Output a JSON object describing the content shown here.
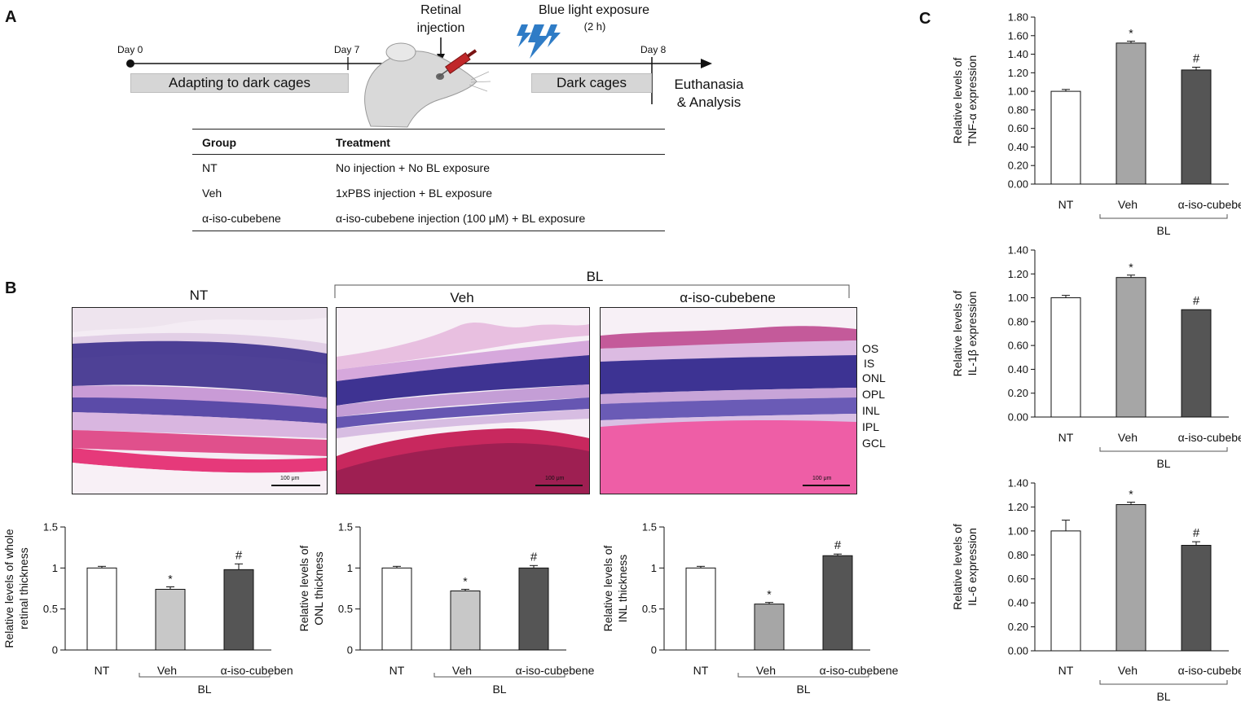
{
  "panel_labels": {
    "a": "A",
    "b": "B",
    "c": "C"
  },
  "timeline": {
    "day0": "Day 0",
    "day7": "Day 7",
    "day8": "Day 8",
    "retinal_injection": [
      "Retinal",
      "injection"
    ],
    "blue_light_title": "Blue light exposure",
    "blue_light_duration": "(2 h)",
    "box_adapting": "Adapting to dark cages",
    "box_dark": "Dark cages",
    "euthanasia": [
      "Euthanasia",
      "& Analysis"
    ]
  },
  "table": {
    "headers": [
      "Group",
      "Treatment"
    ],
    "rows": [
      [
        "NT",
        "No injection + No BL exposure"
      ],
      [
        "Veh",
        "1xPBS injection + BL exposure"
      ],
      [
        "α-iso-cubebene",
        "α-iso-cubebene injection (100 μM) + BL exposure"
      ]
    ]
  },
  "histology": {
    "group_bl": "BL",
    "titles": [
      "NT",
      "Veh",
      "α-iso-cubebene"
    ],
    "scale_bar": "100 μm",
    "layers": [
      "OS",
      "IS",
      "ONL",
      "OPL",
      "INL",
      "IPL",
      "GCL"
    ]
  },
  "colors": {
    "nt": "#ffffff",
    "veh_b": "#c8c8c8",
    "veh_c": "#a6a6a6",
    "aic": "#555555"
  },
  "chart_data": [
    {
      "id": "b1",
      "type": "bar",
      "categories": [
        "NT",
        "Veh",
        "α-iso-cubebene"
      ],
      "values": [
        1.0,
        0.74,
        0.98
      ],
      "errors": [
        0.02,
        0.03,
        0.07
      ],
      "sig": [
        "",
        "*",
        "#"
      ],
      "ylabel": [
        "Relative levels of whole",
        "retinal thickness"
      ],
      "ylim": [
        0,
        1.5
      ],
      "yticks": [
        "0",
        "0.5",
        "1",
        "1.5"
      ],
      "group_label": "BL"
    },
    {
      "id": "b2",
      "type": "bar",
      "categories": [
        "NT",
        "Veh",
        "α-iso-cubebene"
      ],
      "values": [
        1.0,
        0.72,
        1.0
      ],
      "errors": [
        0.02,
        0.02,
        0.03
      ],
      "sig": [
        "",
        "*",
        "#"
      ],
      "ylabel": [
        "Relative levels of",
        "ONL thickness"
      ],
      "ylim": [
        0,
        1.5
      ],
      "yticks": [
        "0",
        "0.5",
        "1",
        "1.5"
      ],
      "group_label": "BL"
    },
    {
      "id": "b3",
      "type": "bar",
      "categories": [
        "NT",
        "Veh",
        "α-iso-cubebene"
      ],
      "values": [
        1.0,
        0.56,
        1.15
      ],
      "errors": [
        0.02,
        0.02,
        0.02
      ],
      "sig": [
        "",
        "*",
        "#"
      ],
      "ylabel": [
        "Relative levels of",
        "INL thickness"
      ],
      "ylim": [
        0,
        1.5
      ],
      "yticks": [
        "0",
        "0.5",
        "1",
        "1.5"
      ],
      "group_label": "BL"
    },
    {
      "id": "c1",
      "type": "bar",
      "categories": [
        "NT",
        "Veh",
        "α-iso-cubebene"
      ],
      "values": [
        1.0,
        1.52,
        1.23
      ],
      "errors": [
        0.02,
        0.02,
        0.03
      ],
      "sig": [
        "",
        "*",
        "#"
      ],
      "ylabel": [
        "Relative levels of",
        "TNF-α expression"
      ],
      "ylim": [
        0,
        1.8
      ],
      "yticks": [
        "0.00",
        "0.20",
        "0.40",
        "0.60",
        "0.80",
        "1.00",
        "1.20",
        "1.40",
        "1.60",
        "1.80"
      ],
      "group_label": "BL"
    },
    {
      "id": "c2",
      "type": "bar",
      "categories": [
        "NT",
        "Veh",
        "α-iso-cubebene"
      ],
      "values": [
        1.0,
        1.17,
        0.9
      ],
      "errors": [
        0.02,
        0.02,
        0.0
      ],
      "sig": [
        "",
        "*",
        "#"
      ],
      "ylabel": [
        "Relative levels of",
        "IL-1β expression"
      ],
      "ylim": [
        0,
        1.4
      ],
      "yticks": [
        "0.00",
        "0.20",
        "0.40",
        "0.60",
        "0.80",
        "1.00",
        "1.20",
        "1.40"
      ],
      "group_label": "BL"
    },
    {
      "id": "c3",
      "type": "bar",
      "categories": [
        "NT",
        "Veh",
        "α-iso-cubebene"
      ],
      "values": [
        1.0,
        1.22,
        0.88
      ],
      "errors": [
        0.09,
        0.02,
        0.03
      ],
      "sig": [
        "",
        "*",
        "#"
      ],
      "ylabel": [
        "Relative levels of",
        "IL-6 expression"
      ],
      "ylim": [
        0,
        1.4
      ],
      "yticks": [
        "0.00",
        "0.20",
        "0.40",
        "0.60",
        "0.80",
        "1.00",
        "1.20",
        "1.40"
      ],
      "group_label": "BL"
    }
  ]
}
